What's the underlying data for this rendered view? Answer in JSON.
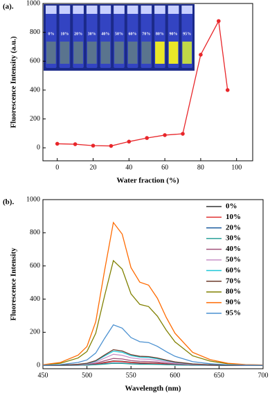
{
  "chart_data": [
    {
      "type": "line",
      "panel_label": "(a).",
      "xlabel": "Water fraction (%)",
      "ylabel": "Fluorescence Intensity (a.u.)",
      "x": [
        0,
        10,
        20,
        30,
        40,
        50,
        60,
        70,
        80,
        90,
        95
      ],
      "series": [
        {
          "color": "#e8262a",
          "values": [
            28,
            25,
            15,
            13,
            43,
            68,
            88,
            97,
            645,
            878,
            400
          ]
        }
      ],
      "markers": true,
      "xlim": [
        -8,
        109
      ],
      "ylim": [
        -90,
        1000
      ],
      "xticks": [
        0,
        20,
        40,
        60,
        80,
        100
      ],
      "yticks": [
        0,
        200,
        400,
        600,
        800,
        1000
      ],
      "inset_labels": [
        "0%",
        "10%",
        "20%",
        "30%",
        "40%",
        "50%",
        "60%",
        "70%",
        "80%",
        "90%",
        "95%"
      ]
    },
    {
      "type": "line",
      "panel_label": "(b).",
      "xlabel": "Wavelength (nm)",
      "ylabel": "Fluorescence Intensity",
      "x": [
        450,
        470,
        490,
        500,
        510,
        520,
        530,
        540,
        550,
        560,
        570,
        580,
        590,
        600,
        620,
        640,
        660,
        680,
        700
      ],
      "series": [
        {
          "name": "0%",
          "color": "#333333",
          "values": [
            0,
            1,
            2,
            4,
            8,
            18,
            27,
            25,
            19,
            16,
            15,
            13,
            9,
            6,
            3,
            1,
            0,
            0,
            0
          ]
        },
        {
          "name": "10%",
          "color": "#e03030",
          "values": [
            0,
            1,
            2,
            3,
            8,
            16,
            25,
            23,
            17,
            14,
            14,
            12,
            8,
            6,
            2,
            1,
            0,
            0,
            0
          ]
        },
        {
          "name": "20%",
          "color": "#1f5fa0",
          "values": [
            0,
            0,
            1,
            2,
            5,
            10,
            15,
            14,
            10,
            9,
            8,
            7,
            5,
            3,
            1,
            1,
            0,
            0,
            0
          ]
        },
        {
          "name": "30%",
          "color": "#2aa198",
          "values": [
            0,
            0,
            1,
            2,
            4,
            8,
            13,
            12,
            9,
            7,
            7,
            6,
            4,
            3,
            1,
            1,
            0,
            0,
            0
          ]
        },
        {
          "name": "40%",
          "color": "#a0507a",
          "values": [
            0,
            1,
            3,
            6,
            13,
            28,
            42,
            39,
            29,
            25,
            24,
            20,
            14,
            9,
            4,
            2,
            1,
            0,
            0
          ]
        },
        {
          "name": "50%",
          "color": "#c890c8",
          "values": [
            0,
            1,
            5,
            9,
            20,
            44,
            67,
            61,
            46,
            39,
            37,
            31,
            22,
            15,
            6,
            3,
            1,
            0,
            0
          ]
        },
        {
          "name": "60%",
          "color": "#1ec8d8",
          "values": [
            0,
            2,
            6,
            11,
            26,
            57,
            86,
            79,
            59,
            50,
            48,
            40,
            29,
            19,
            8,
            4,
            1,
            1,
            0
          ]
        },
        {
          "name": "70%",
          "color": "#6b3a2a",
          "values": [
            0,
            2,
            7,
            13,
            29,
            63,
            95,
            87,
            65,
            55,
            53,
            45,
            32,
            21,
            9,
            4,
            1,
            1,
            0
          ]
        },
        {
          "name": "80%",
          "color": "#808000",
          "values": [
            3,
            13,
            45,
            84,
            194,
            419,
            632,
            581,
            432,
            368,
            355,
            297,
            213,
            142,
            58,
            26,
            10,
            4,
            2
          ]
        },
        {
          "name": "90%",
          "color": "#ff6a00",
          "values": [
            4,
            18,
            62,
            114,
            264,
            572,
            862,
            792,
            590,
            502,
            484,
            405,
            290,
            194,
            79,
            35,
            13,
            5,
            3
          ]
        },
        {
          "name": "95%",
          "color": "#4a90d0",
          "values": [
            1,
            5,
            18,
            33,
            75,
            163,
            245,
            225,
            168,
            143,
            138,
            115,
            83,
            55,
            23,
            10,
            4,
            2,
            1
          ]
        }
      ],
      "legend": "upper right",
      "xlim": [
        450,
        700
      ],
      "ylim": [
        -20,
        1000
      ],
      "xticks": [
        450,
        500,
        550,
        600,
        650,
        700
      ],
      "yticks": [
        0,
        200,
        400,
        600,
        800,
        1000
      ]
    }
  ]
}
